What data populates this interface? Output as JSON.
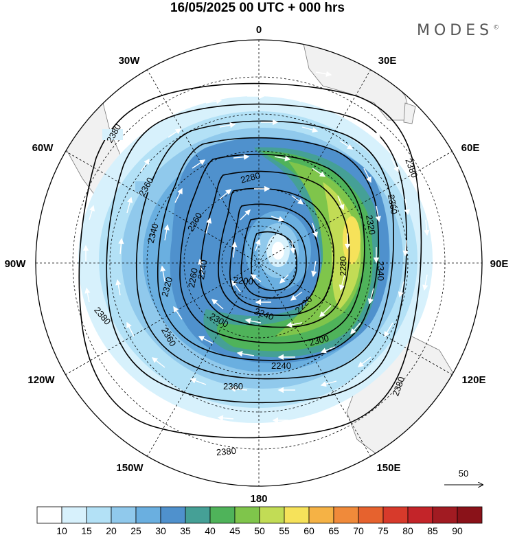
{
  "title": "16/05/2025  00 UTC  + 000 hrs",
  "brand": "MODES",
  "brand_mark": "©",
  "longitude_labels": {
    "lon_0": "0",
    "lon_30e": "30E",
    "lon_60e": "60E",
    "lon_90e": "90E",
    "lon_120e": "120E",
    "lon_150e": "150E",
    "lon_180": "180",
    "lon_150w": "150W",
    "lon_120w": "120W",
    "lon_90w": "90W",
    "lon_60w": "60W",
    "lon_30w": "30W"
  },
  "contours": {
    "c2380_a": "2380",
    "c2380_b": "2380",
    "c2380_c": "2380",
    "c2380_d": "2380",
    "c2380_e": "2380",
    "c2380_f": "2380",
    "c2360_a": "2360",
    "c2360_b": "2360",
    "c2360_c": "2360",
    "c2360_d": "2360",
    "c2340_a": "2340",
    "c2340_b": "2340",
    "c2320_a": "2320",
    "c2320_b": "2320",
    "c2300_a": "2300",
    "c2300_b": "2300",
    "c2280_a": "2280",
    "c2280_b": "2280",
    "c2260_a": "2260",
    "c2260_b": "2260",
    "c2240_a": "2240",
    "c2240_b": "2240",
    "c2220_a": "2220",
    "c2200_a": "2200"
  },
  "vector_scale_label": "50",
  "colorbar": {
    "labels": [
      "10",
      "15",
      "20",
      "25",
      "30",
      "35",
      "40",
      "45",
      "50",
      "55",
      "60",
      "65",
      "70",
      "75",
      "80",
      "85",
      "90"
    ],
    "colors": [
      "#ffffff",
      "#d7f1fc",
      "#b3e1f6",
      "#90c9ec",
      "#6aafe0",
      "#4f91cd",
      "#45a096",
      "#4fb35a",
      "#7fc54b",
      "#c2dc55",
      "#f6e25a",
      "#f5b245",
      "#f08a3a",
      "#e6622e",
      "#d73a2b",
      "#c32429",
      "#a11b22",
      "#8a1219"
    ]
  }
}
